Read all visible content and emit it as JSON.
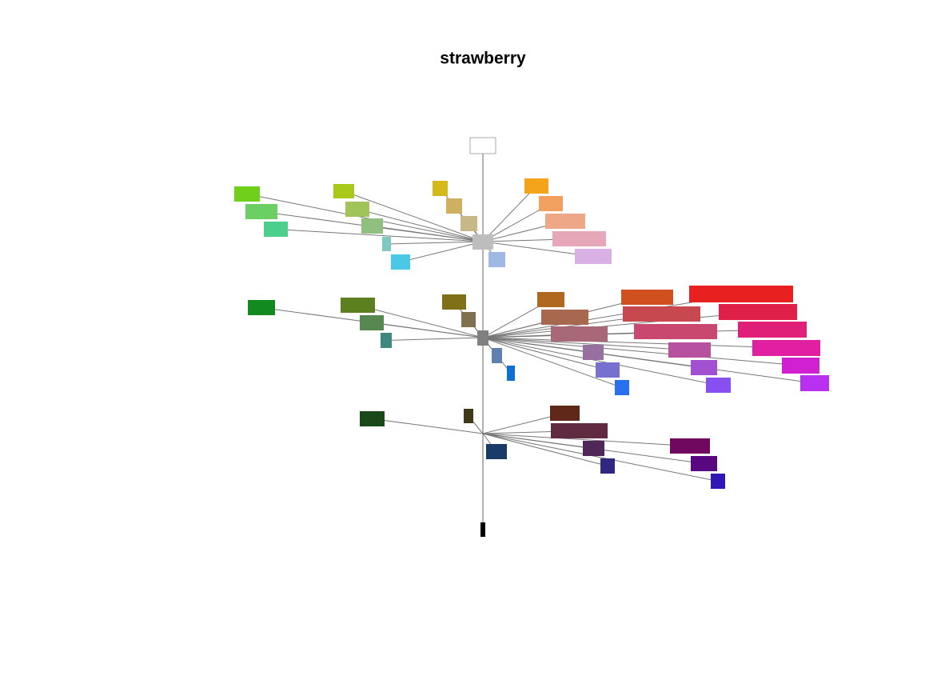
{
  "title": "strawberry"
}
